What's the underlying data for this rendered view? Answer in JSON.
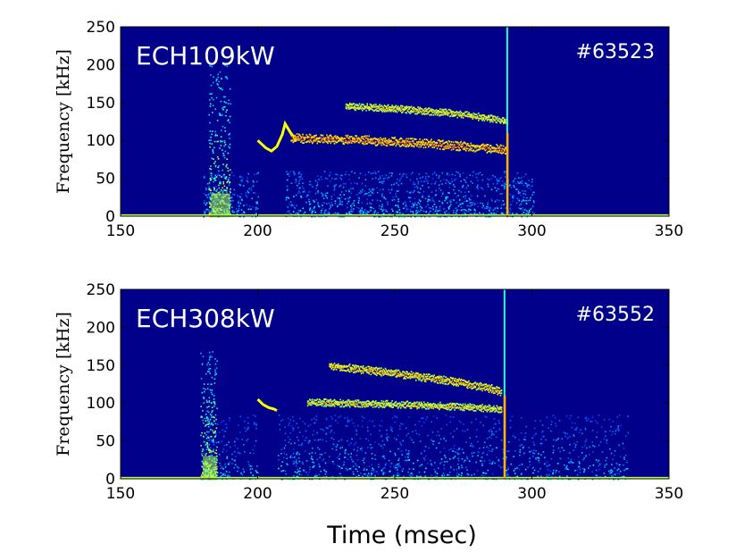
{
  "chart_data": [
    {
      "type": "heatmap",
      "subtype": "spectrogram",
      "colormap": "jet",
      "power_label": "ECH109kW",
      "shot_label": "#63523",
      "ylabel": "Frequency [kHz]",
      "xlim": [
        150,
        350
      ],
      "ylim": [
        0,
        250
      ],
      "xticks": [
        "150",
        "200",
        "250",
        "300",
        "350"
      ],
      "yticks": [
        "0",
        "50",
        "100",
        "150",
        "200",
        "250"
      ],
      "features": {
        "broadband_burst": {
          "t": [
            182,
            190
          ],
          "f_max": 200
        },
        "gap": {
          "t": [
            200,
            210
          ]
        },
        "hook": [
          [
            200,
            100
          ],
          [
            203,
            90
          ],
          [
            205,
            86
          ],
          [
            207,
            92
          ],
          [
            209,
            108
          ],
          [
            210,
            122
          ],
          [
            212,
            110
          ],
          [
            214,
            100
          ]
        ],
        "modes": [
          {
            "points": [
              [
                212,
                104
              ],
              [
                240,
                101
              ],
              [
                260,
                97
              ],
              [
                280,
                92
              ],
              [
                291,
                88
              ]
            ],
            "strength": 1.0
          },
          {
            "points": [
              [
                232,
                146
              ],
              [
                250,
                143
              ],
              [
                270,
                137
              ],
              [
                285,
                130
              ],
              [
                291,
                125
              ]
            ],
            "strength": 0.6
          }
        ],
        "termination_time": 291
      }
    },
    {
      "type": "heatmap",
      "subtype": "spectrogram",
      "colormap": "jet",
      "power_label": "ECH308kW",
      "shot_label": "#63552",
      "ylabel": "Frequency [kHz]",
      "xlabel": "Time (msec)",
      "xlim": [
        150,
        350
      ],
      "ylim": [
        0,
        250
      ],
      "xticks": [
        "150",
        "200",
        "250",
        "300",
        "350"
      ],
      "yticks": [
        "0",
        "50",
        "100",
        "150",
        "200",
        "250"
      ],
      "features": {
        "broadband_burst": {
          "t": [
            179,
            185
          ],
          "f_max": 170
        },
        "gap": {
          "t": [
            200,
            207
          ]
        },
        "hook": [
          [
            200,
            105
          ],
          [
            202,
            98
          ],
          [
            204,
            94
          ],
          [
            206,
            92
          ],
          [
            207,
            90
          ]
        ],
        "modes": [
          {
            "points": [
              [
                226,
                150
              ],
              [
                250,
                140
              ],
              [
                270,
                130
              ],
              [
                285,
                120
              ],
              [
                289,
                115
              ]
            ],
            "strength": 0.75
          },
          {
            "points": [
              [
                218,
                102
              ],
              [
                240,
                100
              ],
              [
                260,
                98
              ],
              [
                280,
                95
              ],
              [
                289,
                92
              ]
            ],
            "strength": 0.6
          }
        ],
        "termination_time": 290
      }
    }
  ]
}
